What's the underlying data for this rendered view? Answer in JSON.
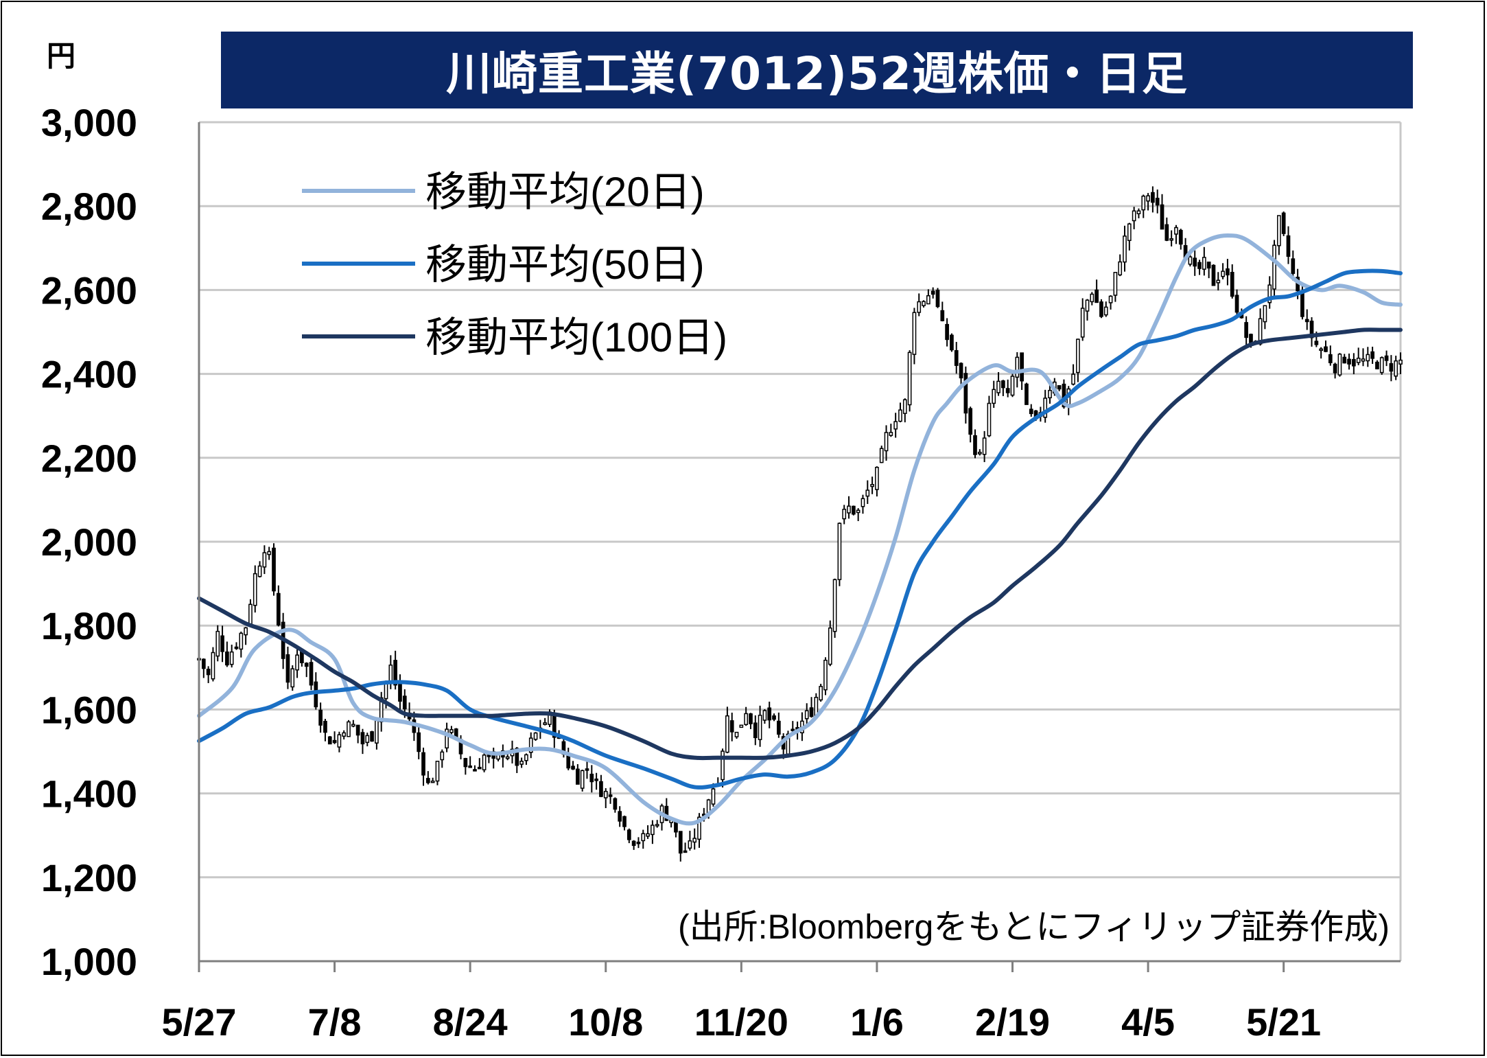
{
  "chart_data": {
    "type": "line",
    "title": "川崎重工業(7012)52週株価・日足",
    "unit_label": "円",
    "source": "(出所:Bloombergをもとにフィリップ証券作成)",
    "ylim": [
      1000,
      3000
    ],
    "y_ticks": [
      1000,
      1200,
      1400,
      1600,
      1800,
      2000,
      2200,
      2400,
      2600,
      2800,
      3000
    ],
    "x_ticks": [
      {
        "label": "5/27",
        "index": 0
      },
      {
        "label": "7/8",
        "index": 29
      },
      {
        "label": "8/24",
        "index": 58
      },
      {
        "label": "10/8",
        "index": 87
      },
      {
        "label": "11/20",
        "index": 116
      },
      {
        "label": "1/6",
        "index": 145
      },
      {
        "label": "2/19",
        "index": 174
      },
      {
        "label": "4/5",
        "index": 203
      },
      {
        "label": "5/21",
        "index": 232
      }
    ],
    "grid": true,
    "legend": "upper-left",
    "series": [
      {
        "name": "移動平均(20日)",
        "color": "#92b3db",
        "points": [
          [
            0,
            1585
          ],
          [
            7,
            1650
          ],
          [
            12,
            1745
          ],
          [
            19,
            1790
          ],
          [
            24,
            1760
          ],
          [
            29,
            1720
          ],
          [
            33,
            1615
          ],
          [
            37,
            1580
          ],
          [
            44,
            1570
          ],
          [
            52,
            1545
          ],
          [
            58,
            1515
          ],
          [
            63,
            1495
          ],
          [
            70,
            1505
          ],
          [
            75,
            1505
          ],
          [
            80,
            1490
          ],
          [
            87,
            1460
          ],
          [
            95,
            1380
          ],
          [
            101,
            1340
          ],
          [
            106,
            1330
          ],
          [
            111,
            1370
          ],
          [
            116,
            1430
          ],
          [
            121,
            1480
          ],
          [
            126,
            1535
          ],
          [
            131,
            1570
          ],
          [
            136,
            1645
          ],
          [
            141,
            1760
          ],
          [
            145,
            1875
          ],
          [
            149,
            2010
          ],
          [
            153,
            2170
          ],
          [
            157,
            2285
          ],
          [
            160,
            2330
          ],
          [
            164,
            2380
          ],
          [
            170,
            2420
          ],
          [
            174,
            2405
          ],
          [
            180,
            2405
          ],
          [
            185,
            2330
          ],
          [
            188,
            2330
          ],
          [
            193,
            2360
          ],
          [
            197,
            2390
          ],
          [
            201,
            2440
          ],
          [
            205,
            2530
          ],
          [
            209,
            2630
          ],
          [
            212,
            2690
          ],
          [
            216,
            2720
          ],
          [
            220,
            2730
          ],
          [
            224,
            2720
          ],
          [
            230,
            2670
          ],
          [
            235,
            2620
          ],
          [
            240,
            2600
          ],
          [
            244,
            2610
          ],
          [
            249,
            2595
          ],
          [
            253,
            2570
          ],
          [
            257,
            2565
          ]
        ]
      },
      {
        "name": "移動平均(50日)",
        "color": "#1a6fc4",
        "points": [
          [
            0,
            1525
          ],
          [
            5,
            1555
          ],
          [
            10,
            1590
          ],
          [
            15,
            1605
          ],
          [
            20,
            1630
          ],
          [
            24,
            1640
          ],
          [
            29,
            1645
          ],
          [
            33,
            1650
          ],
          [
            37,
            1660
          ],
          [
            41,
            1665
          ],
          [
            44,
            1665
          ],
          [
            48,
            1660
          ],
          [
            53,
            1645
          ],
          [
            58,
            1600
          ],
          [
            63,
            1580
          ],
          [
            70,
            1560
          ],
          [
            75,
            1545
          ],
          [
            80,
            1525
          ],
          [
            87,
            1490
          ],
          [
            95,
            1460
          ],
          [
            101,
            1435
          ],
          [
            106,
            1415
          ],
          [
            111,
            1420
          ],
          [
            116,
            1435
          ],
          [
            121,
            1445
          ],
          [
            126,
            1440
          ],
          [
            131,
            1450
          ],
          [
            136,
            1480
          ],
          [
            141,
            1555
          ],
          [
            145,
            1660
          ],
          [
            149,
            1790
          ],
          [
            153,
            1925
          ],
          [
            157,
            2000
          ],
          [
            161,
            2060
          ],
          [
            165,
            2120
          ],
          [
            170,
            2185
          ],
          [
            174,
            2250
          ],
          [
            179,
            2295
          ],
          [
            184,
            2330
          ],
          [
            188,
            2370
          ],
          [
            193,
            2410
          ],
          [
            197,
            2440
          ],
          [
            201,
            2470
          ],
          [
            205,
            2480
          ],
          [
            209,
            2490
          ],
          [
            213,
            2505
          ],
          [
            217,
            2515
          ],
          [
            221,
            2530
          ],
          [
            225,
            2560
          ],
          [
            229,
            2580
          ],
          [
            233,
            2585
          ],
          [
            237,
            2600
          ],
          [
            241,
            2620
          ],
          [
            245,
            2640
          ],
          [
            249,
            2645
          ],
          [
            253,
            2645
          ],
          [
            257,
            2640
          ]
        ]
      },
      {
        "name": "移動平均(100日)",
        "color": "#1e3760",
        "points": [
          [
            0,
            1865
          ],
          [
            5,
            1835
          ],
          [
            10,
            1805
          ],
          [
            15,
            1785
          ],
          [
            20,
            1755
          ],
          [
            25,
            1720
          ],
          [
            29,
            1690
          ],
          [
            33,
            1665
          ],
          [
            37,
            1635
          ],
          [
            41,
            1610
          ],
          [
            44,
            1590
          ],
          [
            48,
            1585
          ],
          [
            53,
            1585
          ],
          [
            58,
            1585
          ],
          [
            63,
            1585
          ],
          [
            70,
            1590
          ],
          [
            75,
            1590
          ],
          [
            80,
            1580
          ],
          [
            87,
            1560
          ],
          [
            95,
            1525
          ],
          [
            101,
            1495
          ],
          [
            106,
            1485
          ],
          [
            111,
            1485
          ],
          [
            116,
            1485
          ],
          [
            121,
            1485
          ],
          [
            126,
            1490
          ],
          [
            131,
            1500
          ],
          [
            136,
            1520
          ],
          [
            141,
            1555
          ],
          [
            145,
            1600
          ],
          [
            149,
            1655
          ],
          [
            153,
            1705
          ],
          [
            157,
            1745
          ],
          [
            161,
            1785
          ],
          [
            165,
            1820
          ],
          [
            170,
            1855
          ],
          [
            174,
            1895
          ],
          [
            179,
            1940
          ],
          [
            184,
            1990
          ],
          [
            188,
            2045
          ],
          [
            193,
            2110
          ],
          [
            197,
            2170
          ],
          [
            201,
            2235
          ],
          [
            205,
            2290
          ],
          [
            209,
            2335
          ],
          [
            213,
            2370
          ],
          [
            217,
            2410
          ],
          [
            221,
            2445
          ],
          [
            225,
            2470
          ],
          [
            229,
            2480
          ],
          [
            233,
            2485
          ],
          [
            237,
            2490
          ],
          [
            241,
            2495
          ],
          [
            245,
            2500
          ],
          [
            249,
            2505
          ],
          [
            253,
            2505
          ],
          [
            257,
            2505
          ]
        ]
      }
    ],
    "price_anchors": [
      [
        0,
        1720
      ],
      [
        2,
        1680
      ],
      [
        4,
        1780
      ],
      [
        6,
        1720
      ],
      [
        8,
        1760
      ],
      [
        10,
        1800
      ],
      [
        12,
        1920
      ],
      [
        14,
        1990
      ],
      [
        15,
        1960
      ],
      [
        17,
        1810
      ],
      [
        19,
        1650
      ],
      [
        21,
        1740
      ],
      [
        23,
        1700
      ],
      [
        25,
        1620
      ],
      [
        27,
        1540
      ],
      [
        29,
        1520
      ],
      [
        31,
        1560
      ],
      [
        33,
        1560
      ],
      [
        35,
        1520
      ],
      [
        37,
        1540
      ],
      [
        39,
        1630
      ],
      [
        41,
        1700
      ],
      [
        43,
        1620
      ],
      [
        45,
        1580
      ],
      [
        47,
        1500
      ],
      [
        49,
        1420
      ],
      [
        51,
        1460
      ],
      [
        53,
        1560
      ],
      [
        55,
        1520
      ],
      [
        57,
        1470
      ],
      [
        59,
        1460
      ],
      [
        61,
        1490
      ],
      [
        63,
        1470
      ],
      [
        65,
        1500
      ],
      [
        67,
        1490
      ],
      [
        69,
        1460
      ],
      [
        71,
        1520
      ],
      [
        73,
        1560
      ],
      [
        75,
        1580
      ],
      [
        77,
        1520
      ],
      [
        79,
        1470
      ],
      [
        81,
        1440
      ],
      [
        83,
        1460
      ],
      [
        85,
        1420
      ],
      [
        87,
        1400
      ],
      [
        89,
        1380
      ],
      [
        91,
        1320
      ],
      [
        93,
        1290
      ],
      [
        95,
        1290
      ],
      [
        97,
        1320
      ],
      [
        99,
        1360
      ],
      [
        101,
        1340
      ],
      [
        103,
        1260
      ],
      [
        105,
        1270
      ],
      [
        107,
        1330
      ],
      [
        109,
        1390
      ],
      [
        111,
        1440
      ],
      [
        113,
        1580
      ],
      [
        115,
        1540
      ],
      [
        117,
        1600
      ],
      [
        119,
        1550
      ],
      [
        121,
        1590
      ],
      [
        123,
        1560
      ],
      [
        125,
        1510
      ],
      [
        127,
        1540
      ],
      [
        129,
        1570
      ],
      [
        131,
        1600
      ],
      [
        133,
        1660
      ],
      [
        135,
        1800
      ],
      [
        137,
        2050
      ],
      [
        139,
        2080
      ],
      [
        141,
        2070
      ],
      [
        143,
        2120
      ],
      [
        145,
        2160
      ],
      [
        147,
        2250
      ],
      [
        149,
        2300
      ],
      [
        151,
        2330
      ],
      [
        153,
        2560
      ],
      [
        155,
        2580
      ],
      [
        157,
        2600
      ],
      [
        159,
        2510
      ],
      [
        161,
        2460
      ],
      [
        163,
        2380
      ],
      [
        165,
        2250
      ],
      [
        167,
        2200
      ],
      [
        169,
        2320
      ],
      [
        171,
        2380
      ],
      [
        173,
        2340
      ],
      [
        175,
        2440
      ],
      [
        177,
        2310
      ],
      [
        179,
        2280
      ],
      [
        181,
        2350
      ],
      [
        183,
        2390
      ],
      [
        185,
        2330
      ],
      [
        187,
        2400
      ],
      [
        189,
        2550
      ],
      [
        191,
        2600
      ],
      [
        193,
        2540
      ],
      [
        195,
        2580
      ],
      [
        197,
        2680
      ],
      [
        199,
        2760
      ],
      [
        201,
        2790
      ],
      [
        203,
        2830
      ],
      [
        205,
        2790
      ],
      [
        207,
        2720
      ],
      [
        209,
        2760
      ],
      [
        211,
        2690
      ],
      [
        213,
        2640
      ],
      [
        215,
        2660
      ],
      [
        217,
        2620
      ],
      [
        219,
        2650
      ],
      [
        221,
        2600
      ],
      [
        223,
        2520
      ],
      [
        225,
        2460
      ],
      [
        227,
        2520
      ],
      [
        229,
        2620
      ],
      [
        231,
        2760
      ],
      [
        233,
        2680
      ],
      [
        235,
        2590
      ],
      [
        237,
        2510
      ],
      [
        239,
        2470
      ],
      [
        241,
        2450
      ],
      [
        243,
        2420
      ],
      [
        245,
        2440
      ],
      [
        247,
        2430
      ],
      [
        249,
        2430
      ],
      [
        251,
        2430
      ],
      [
        253,
        2425
      ],
      [
        255,
        2420
      ],
      [
        257,
        2430
      ]
    ]
  }
}
